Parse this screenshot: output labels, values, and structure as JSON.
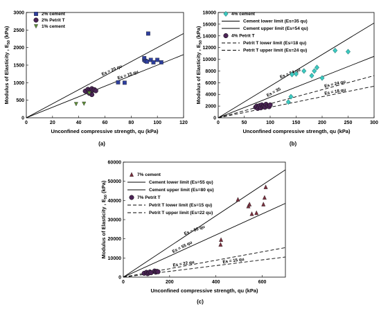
{
  "chart_data": [
    {
      "type": "scatter",
      "title": "",
      "panel_label": "(a)",
      "xlabel": "Unconfined compressive strength, qu (kPa)",
      "ylabel": "Modulus of Elasticity , E",
      "ylabel_sub": "50",
      "ylabel_unit": " (kPa)",
      "xlim": [
        0,
        120
      ],
      "ylim": [
        0,
        3000
      ],
      "xticks": [
        0,
        20,
        40,
        60,
        80,
        100,
        120
      ],
      "yticks": [
        0,
        500,
        1000,
        1500,
        2000,
        2500,
        3000
      ],
      "grid": false,
      "legend_position": "top-left",
      "series": [
        {
          "name": "2% cement",
          "marker": "square",
          "color": "#2e3f9e",
          "points": [
            [
              70,
              1010
            ],
            [
              75,
              1000
            ],
            [
              90,
              1650
            ],
            [
              90,
              1700
            ],
            [
              91,
              1620
            ],
            [
              92,
              1600
            ],
            [
              93,
              2400
            ],
            [
              95,
              1650
            ],
            [
              97,
              1580
            ],
            [
              100,
              1650
            ],
            [
              103,
              1580
            ]
          ]
        },
        {
          "name": "2% Petrit T",
          "marker": "circle",
          "color": "#4b2456",
          "points": [
            [
              45,
              760
            ],
            [
              47,
              810
            ],
            [
              48,
              770
            ],
            [
              49,
              750
            ],
            [
              50,
              830
            ],
            [
              51,
              790
            ],
            [
              52,
              800
            ],
            [
              53,
              770
            ],
            [
              50,
              660
            ],
            [
              48,
              700
            ]
          ]
        },
        {
          "name": "1% cement",
          "marker": "triangle-down",
          "color": "#5f8f3a",
          "points": [
            [
              38,
              390
            ],
            [
              44,
              400
            ],
            [
              48,
              700
            ]
          ]
        }
      ],
      "reference_lines": [
        {
          "slope": 20,
          "label": "Es = 20 qu"
        },
        {
          "slope": 15,
          "label": "Es = 15 qu"
        }
      ]
    },
    {
      "type": "scatter",
      "title": "",
      "panel_label": "(b)",
      "xlabel": "Unconfined compressive strength, qu (kPa)",
      "ylabel": "Modulus of Elasticity , E",
      "ylabel_sub": "50",
      "ylabel_unit": " (kPa)",
      "xlim": [
        0,
        300
      ],
      "ylim": [
        0,
        18000
      ],
      "xticks": [
        0,
        50,
        100,
        150,
        200,
        250,
        300
      ],
      "yticks": [
        0,
        2000,
        4000,
        6000,
        8000,
        10000,
        12000,
        14000,
        16000,
        18000
      ],
      "grid": false,
      "legend_position": "top-left",
      "series": [
        {
          "name": "4% cement",
          "marker": "diamond",
          "color": "#3cc9c0",
          "points": [
            [
              135,
              2700
            ],
            [
              140,
              3600
            ],
            [
              142,
              7400
            ],
            [
              150,
              7500
            ],
            [
              165,
              8000
            ],
            [
              180,
              7200
            ],
            [
              185,
              8000
            ],
            [
              190,
              8600
            ],
            [
              200,
              6800
            ],
            [
              225,
              11500
            ],
            [
              250,
              11300
            ]
          ]
        },
        {
          "name": "4% Petrit T",
          "marker": "circle",
          "color": "#4b2456",
          "points": [
            [
              72,
              1800
            ],
            [
              74,
              2000
            ],
            [
              76,
              1600
            ],
            [
              78,
              1900
            ],
            [
              80,
              2100
            ],
            [
              82,
              1700
            ],
            [
              84,
              2200
            ],
            [
              86,
              1900
            ],
            [
              88,
              2000
            ],
            [
              90,
              1800
            ],
            [
              92,
              2300
            ],
            [
              95,
              2000
            ],
            [
              98,
              1900
            ],
            [
              100,
              2200
            ]
          ]
        }
      ],
      "reference_lines": [
        {
          "slope": 35,
          "label": "Es = 35",
          "style": "solid",
          "legend": "Cement lower limit (Es=35 qu)"
        },
        {
          "slope": 54,
          "label": "Es = 54 qu",
          "style": "solid",
          "legend": "Cement upper limit (Es=54 qu)"
        },
        {
          "slope": 18,
          "label": "Es = 18 qu",
          "style": "dashed",
          "legend": "Petrit T lower limit (Es=18 qu)"
        },
        {
          "slope": 24,
          "label": "Es = 24 qu",
          "style": "dashed",
          "legend": "Petrit T upper limit (Es=24 qu)"
        }
      ]
    },
    {
      "type": "scatter",
      "title": "",
      "panel_label": "(c)",
      "xlabel": "Unconfined compressive strength, qu (kPa)",
      "ylabel": "Modulus of Elasticity , E",
      "ylabel_sub": "50",
      "ylabel_unit": " (kPa)",
      "xlim": [
        0,
        700
      ],
      "ylim": [
        0,
        60000
      ],
      "xticks": [
        0,
        200,
        400,
        600
      ],
      "yticks": [
        0,
        10000,
        20000,
        30000,
        40000,
        50000,
        60000
      ],
      "grid": false,
      "legend_position": "top-left",
      "series": [
        {
          "name": "7% cement",
          "marker": "triangle-up",
          "color": "#7a2f3e",
          "points": [
            [
              420,
              17000
            ],
            [
              422,
              19500
            ],
            [
              495,
              40500
            ],
            [
              540,
              37000
            ],
            [
              545,
              38000
            ],
            [
              555,
              33000
            ],
            [
              575,
              33500
            ],
            [
              605,
              38000
            ],
            [
              610,
              41500
            ],
            [
              615,
              47000
            ]
          ]
        },
        {
          "name": "7% Petrit T",
          "marker": "circle",
          "color": "#4b2456",
          "points": [
            [
              90,
              2000
            ],
            [
              100,
              2500
            ],
            [
              105,
              1800
            ],
            [
              110,
              2200
            ],
            [
              115,
              2700
            ],
            [
              120,
              2300
            ],
            [
              135,
              3200
            ],
            [
              140,
              2600
            ],
            [
              145,
              3000
            ],
            [
              150,
              2800
            ]
          ]
        }
      ],
      "reference_lines": [
        {
          "slope": 55,
          "label": "Es = 55 qu",
          "style": "solid",
          "legend": "Cement lower limit (Es=55 qu)"
        },
        {
          "slope": 80,
          "label": "Es = 80 qu",
          "style": "solid",
          "legend": "Cement upper limit (Es=80 qu)"
        },
        {
          "slope": 15,
          "label": "Es = 15 qu",
          "style": "dashed",
          "legend": "Petrit T lower limit (Es=15 qu)"
        },
        {
          "slope": 22,
          "label": "Es = 22 qu",
          "style": "dashed",
          "legend": "Petrit T upper limit (Es=22 qu)"
        }
      ]
    }
  ]
}
